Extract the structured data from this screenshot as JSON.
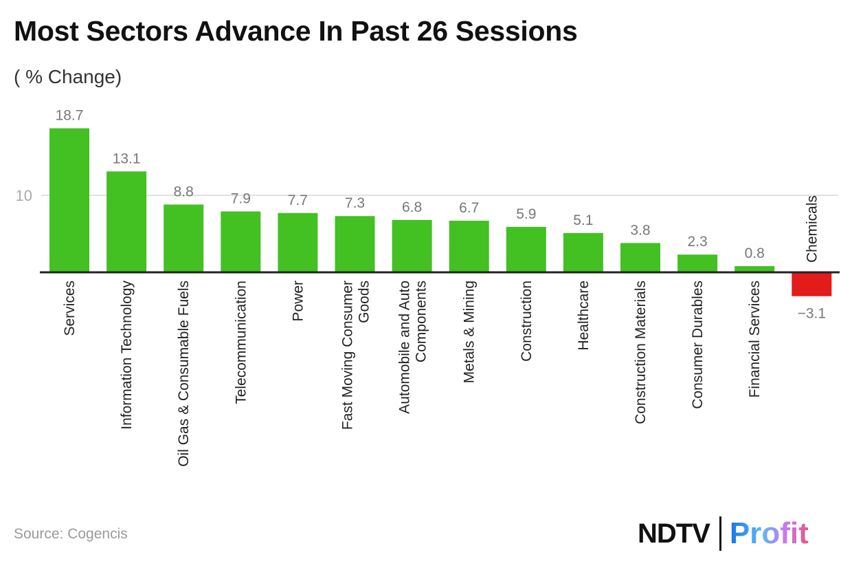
{
  "title": "Most Sectors Advance In Past 26 Sessions",
  "subtitle": "( % Change)",
  "source": "Source: Cogencis",
  "logo": {
    "left": "NDTV",
    "right": "Profit"
  },
  "colors": {
    "positive": "#43c022",
    "negative": "#e21b1b",
    "grid": "#e2e2e2",
    "axis": "#222222",
    "label": "#777777"
  },
  "chart_data": {
    "type": "bar",
    "title": "Most Sectors Advance In Past 26 Sessions",
    "ylabel": "( % Change)",
    "xlabel": "",
    "categories": [
      "Services",
      "Information Technology",
      "Oil Gas & Consumable Fuels",
      "Telecommunication",
      "Power",
      "Fast Moving Consumer Goods",
      "Automobile and Auto Components",
      "Metals & Mining",
      "Construction",
      "Healthcare",
      "Construction Materials",
      "Consumer Durables",
      "Financial Services",
      "Chemicals"
    ],
    "values": [
      18.7,
      13.1,
      8.8,
      7.9,
      7.7,
      7.3,
      6.8,
      6.7,
      5.9,
      5.1,
      3.8,
      2.3,
      0.8,
      -3.1
    ],
    "value_labels": [
      "18.7",
      "13.1",
      "8.8",
      "7.9",
      "7.7",
      "7.3",
      "6.8",
      "6.7",
      "5.9",
      "5.1",
      "3.8",
      "2.3",
      "0.8",
      "−3.1"
    ],
    "yticks": [
      10
    ],
    "ytick_labels": [
      "10"
    ],
    "ylim": [
      -3.1,
      18.7
    ],
    "grid": true,
    "legend": "none"
  }
}
